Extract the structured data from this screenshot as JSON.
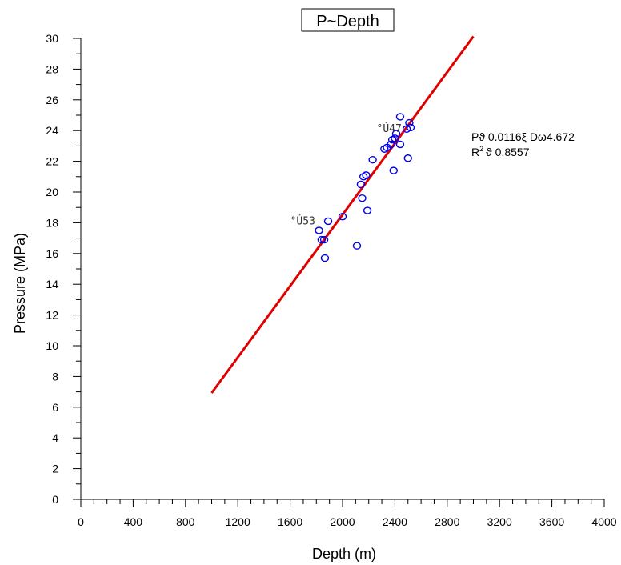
{
  "chart_data": {
    "type": "scatter",
    "title": "P~Depth",
    "xlabel": "Depth (m)",
    "ylabel": "Pressure (MPa)",
    "xlim": [
      0,
      4000
    ],
    "ylim": [
      0,
      30
    ],
    "x_ticks": [
      0,
      400,
      800,
      1200,
      1600,
      2000,
      2400,
      2800,
      3200,
      3600,
      4000
    ],
    "y_ticks": [
      0,
      2,
      4,
      6,
      8,
      10,
      12,
      14,
      16,
      18,
      20,
      22,
      24,
      26,
      28,
      30
    ],
    "grid": false,
    "point_color": "#0000ee",
    "line_color": "#e00000",
    "points": [
      {
        "x": 1820,
        "y": 17.5
      },
      {
        "x": 1840,
        "y": 16.9
      },
      {
        "x": 1860,
        "y": 16.9
      },
      {
        "x": 1865,
        "y": 15.7
      },
      {
        "x": 1890,
        "y": 18.1
      },
      {
        "x": 2000,
        "y": 18.4
      },
      {
        "x": 2110,
        "y": 16.5
      },
      {
        "x": 2140,
        "y": 20.5
      },
      {
        "x": 2150,
        "y": 19.6
      },
      {
        "x": 2160,
        "y": 21.0
      },
      {
        "x": 2180,
        "y": 21.1
      },
      {
        "x": 2190,
        "y": 18.8
      },
      {
        "x": 2230,
        "y": 22.1
      },
      {
        "x": 2320,
        "y": 22.8
      },
      {
        "x": 2340,
        "y": 22.9
      },
      {
        "x": 2370,
        "y": 23.1
      },
      {
        "x": 2380,
        "y": 23.4
      },
      {
        "x": 2390,
        "y": 21.4
      },
      {
        "x": 2400,
        "y": 23.5
      },
      {
        "x": 2410,
        "y": 23.8
      },
      {
        "x": 2440,
        "y": 23.1
      },
      {
        "x": 2440,
        "y": 24.9
      },
      {
        "x": 2490,
        "y": 24.1
      },
      {
        "x": 2500,
        "y": 22.2
      },
      {
        "x": 2510,
        "y": 24.5
      },
      {
        "x": 2520,
        "y": 24.2
      }
    ],
    "fit_line": {
      "slope": 0.0116,
      "intercept": -4.672,
      "x_range": [
        1000,
        3000
      ]
    },
    "annotations": [
      {
        "text": "°Ú47",
        "x": 2260,
        "y": 23.9
      },
      {
        "text": "°Ú53",
        "x": 1600,
        "y": 17.9
      }
    ],
    "equation": {
      "line1": "Pϑ 0.0116ξ Dω4.672",
      "line2_prefix": "R",
      "line2_sup": "2",
      "line2_suffix": "ϑ 0.8557"
    }
  }
}
